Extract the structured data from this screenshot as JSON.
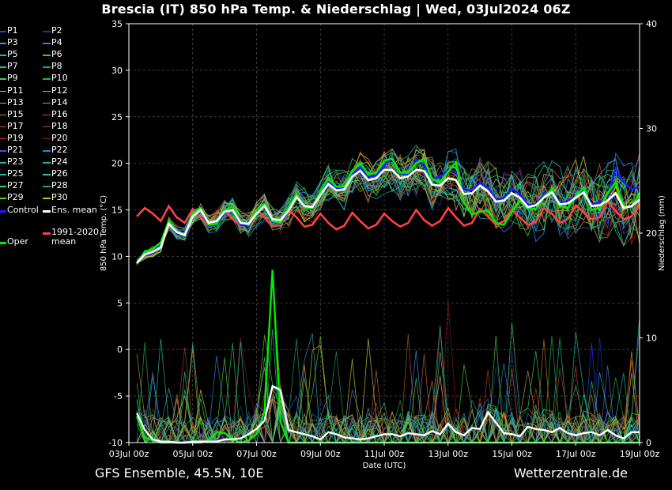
{
  "title": "Brescia  (IT)  850 hPa Temp. & Niederschlag | Wed, 03Jul2024 06Z",
  "footer": {
    "left": "GFS Ensemble, 45.5N, 10E",
    "right": "Wetterzentrale.de"
  },
  "legend": [
    {
      "label": "P1",
      "color": "#2244ff"
    },
    {
      "label": "P2",
      "color": "#1b3aa8"
    },
    {
      "label": "P3",
      "color": "#3a8cff"
    },
    {
      "label": "P4",
      "color": "#4a78d0"
    },
    {
      "label": "P5",
      "color": "#1fb5c0"
    },
    {
      "label": "P6",
      "color": "#2acc5a"
    },
    {
      "label": "P7",
      "color": "#1ec58a"
    },
    {
      "label": "P8",
      "color": "#1fa070"
    },
    {
      "label": "P9",
      "color": "#3ad060"
    },
    {
      "label": "P10",
      "color": "#22bb22"
    },
    {
      "label": "P11",
      "color": "#c8d040"
    },
    {
      "label": "P12",
      "color": "#d8b040"
    },
    {
      "label": "P13",
      "color": "#e0a020"
    },
    {
      "label": "P14",
      "color": "#d89030"
    },
    {
      "label": "P15",
      "color": "#c87840"
    },
    {
      "label": "P16",
      "color": "#b06030"
    },
    {
      "label": "P17",
      "color": "#c86040"
    },
    {
      "label": "P18",
      "color": "#b04030"
    },
    {
      "label": "P19",
      "color": "#c03030"
    },
    {
      "label": "P20",
      "color": "#901818"
    },
    {
      "label": "P21",
      "color": "#3060d0"
    },
    {
      "label": "P22",
      "color": "#2a8ad0"
    },
    {
      "label": "P23",
      "color": "#30a0c8"
    },
    {
      "label": "P24",
      "color": "#20b0b0"
    },
    {
      "label": "P25",
      "color": "#20c0a0"
    },
    {
      "label": "P26",
      "color": "#28c890"
    },
    {
      "label": "P27",
      "color": "#30d070"
    },
    {
      "label": "P28",
      "color": "#20b040"
    },
    {
      "label": "P29",
      "color": "#50d030"
    },
    {
      "label": "P30",
      "color": "#c8c020"
    },
    {
      "label": "Control",
      "color": "#1a1aff"
    },
    {
      "label": "Ens. mean",
      "color": "#ffffff"
    },
    {
      "label": "Oper",
      "color": "#00ee00"
    },
    {
      "label": "1991-2020\nmean",
      "color": "#ff4040"
    }
  ],
  "chart_data": {
    "type": "line",
    "xlabel": "Date (UTC)",
    "ylabel": "850 hPa Temp. (°C)",
    "y2label": "Niederschlag (mm)",
    "ylim": [
      -10,
      35
    ],
    "y2lim": [
      0,
      40
    ],
    "yticks": [
      -10,
      -5,
      0,
      5,
      10,
      15,
      20,
      25,
      30,
      35
    ],
    "y2ticks": [
      0,
      10,
      20,
      30,
      40
    ],
    "xlim": [
      0,
      384
    ],
    "xticks": [
      {
        "h": 0,
        "label": "03Jul 00z"
      },
      {
        "h": 48,
        "label": "05Jul 00z"
      },
      {
        "h": 96,
        "label": "07Jul 00z"
      },
      {
        "h": 144,
        "label": "09Jul 00z"
      },
      {
        "h": 192,
        "label": "11Jul 00z"
      },
      {
        "h": 240,
        "label": "13Jul 00z"
      },
      {
        "h": 288,
        "label": "15Jul 00z"
      },
      {
        "h": 336,
        "label": "17Jul 00z"
      },
      {
        "h": 384,
        "label": "19Jul 00z"
      }
    ],
    "grid": true,
    "legend_position": "left",
    "step_hours": 6,
    "start_hour": 6,
    "temperature": {
      "ens_mean": [
        9.3,
        10.2,
        10.5,
        11.0,
        13.5,
        12.6,
        12.3,
        14.3,
        15.0,
        13.6,
        13.8,
        14.8,
        15.0,
        13.6,
        13.5,
        14.6,
        15.4,
        14.0,
        13.9,
        14.9,
        16.4,
        15.4,
        15.3,
        16.6,
        17.8,
        17.1,
        17.2,
        18.6,
        19.2,
        18.2,
        18.4,
        19.3,
        19.3,
        18.4,
        18.6,
        19.3,
        19.2,
        17.7,
        17.6,
        18.4,
        18.2,
        16.7,
        16.8,
        17.6,
        17.0,
        15.9,
        16.0,
        16.8,
        16.3,
        15.3,
        15.5,
        16.3,
        16.9,
        15.6,
        15.7,
        16.3,
        16.9,
        15.4,
        15.5,
        16.0,
        16.8,
        15.2,
        15.4,
        16.1
      ],
      "oper": [
        9.2,
        10.5,
        10.8,
        11.5,
        13.8,
        12.6,
        12.2,
        14.6,
        15.2,
        13.4,
        13.5,
        15.0,
        15.4,
        13.7,
        13.4,
        15.0,
        15.6,
        13.8,
        13.6,
        15.2,
        16.7,
        15.2,
        15.2,
        17.0,
        18.4,
        17.5,
        17.5,
        19.2,
        20.0,
        18.8,
        19.0,
        20.3,
        20.5,
        19.0,
        19.0,
        20.0,
        20.5,
        18.3,
        18.0,
        19.1,
        20.1,
        15.8,
        14.5,
        14.8,
        14.9,
        13.6,
        13.4,
        14.8,
        16.0,
        15.2,
        15.1,
        16.4,
        17.2,
        15.4,
        15.2,
        16.5,
        17.4,
        15.0,
        15.2,
        16.8,
        18.0,
        15.4,
        15.3,
        16.8
      ],
      "control": [
        9.4,
        10.1,
        10.4,
        11.3,
        13.6,
        12.4,
        12.1,
        14.5,
        15.1,
        13.3,
        13.4,
        14.7,
        15.1,
        13.4,
        13.3,
        14.8,
        15.5,
        13.7,
        13.5,
        15.0,
        16.5,
        15.2,
        15.1,
        16.8,
        18.0,
        17.3,
        17.4,
        18.8,
        19.6,
        18.6,
        18.7,
        19.8,
        20.6,
        18.9,
        18.8,
        20.3,
        19.8,
        18.4,
        18.5,
        19.3,
        19.1,
        17.2,
        17.1,
        17.9,
        17.4,
        16.1,
        16.3,
        17.3,
        16.7,
        15.5,
        15.6,
        16.6,
        17.2,
        15.8,
        15.9,
        16.5,
        17.1,
        15.6,
        15.8,
        16.5,
        19.4,
        18.0,
        17.2,
        17.5
      ],
      "climate": [
        14.3,
        15.2,
        14.6,
        13.8,
        15.4,
        14.2,
        13.6,
        15.1,
        14.2,
        13.2,
        13.4,
        14.9,
        14.0,
        13.3,
        13.5,
        15.0,
        14.2,
        13.2,
        13.4,
        15.0,
        14.2,
        13.2,
        13.4,
        14.6,
        13.6,
        12.9,
        13.3,
        14.7,
        13.8,
        13.0,
        13.4,
        14.6,
        13.8,
        13.2,
        13.6,
        15.0,
        13.9,
        13.3,
        13.8,
        15.2,
        14.2,
        13.3,
        13.6,
        15.1,
        14.3,
        13.4,
        13.8,
        15.0,
        14.2,
        13.4,
        13.7,
        15.2,
        14.6,
        13.6,
        14.0,
        15.5,
        14.7,
        14.0,
        14.2,
        15.9,
        14.9,
        14.0,
        14.3,
        15.6
      ]
    },
    "precipitation": {
      "ens_mean": [
        2.8,
        1.2,
        0.3,
        0.1,
        0.1,
        0.0,
        0.0,
        0.1,
        0.1,
        0.1,
        0.1,
        0.3,
        0.3,
        0.4,
        0.8,
        1.3,
        2.1,
        5.4,
        5.0,
        1.2,
        1.0,
        0.8,
        0.6,
        0.3,
        1.0,
        0.8,
        0.5,
        0.4,
        0.3,
        0.4,
        0.6,
        0.8,
        0.8,
        0.6,
        0.9,
        0.8,
        0.7,
        1.1,
        0.8,
        1.8,
        1.0,
        0.7,
        1.4,
        1.3,
        2.9,
        1.9,
        0.9,
        0.8,
        0.6,
        1.5,
        1.3,
        1.2,
        1.0,
        1.4,
        0.9,
        0.7,
        0.9,
        1.0,
        0.7,
        1.2,
        0.7,
        0.4,
        1.0,
        1.0
      ],
      "oper": [
        2.5,
        0.5,
        0.2,
        0.0,
        0.0,
        0.0,
        0.0,
        0.0,
        0.0,
        0.2,
        1.0,
        0.9,
        0.3,
        0.0,
        0.2,
        0.8,
        3.0,
        16.5,
        2.0,
        0.0,
        0.0,
        0.0,
        0.0,
        0.0,
        0.0,
        0.0,
        0.0,
        0.0,
        0.0,
        0.0,
        0.0,
        0.0,
        0.0,
        0.0,
        0.0,
        0.0,
        0.0,
        0.0,
        0.0,
        0.0,
        0.0,
        0.0,
        0.0,
        0.0,
        0.0,
        0.0,
        0.0,
        0.0,
        0.0,
        0.0,
        0.0,
        0.0,
        0.0,
        0.0,
        0.0,
        0.0,
        0.0,
        0.0,
        0.0,
        0.0,
        0.0,
        0.0,
        0.0,
        0.0
      ]
    }
  }
}
